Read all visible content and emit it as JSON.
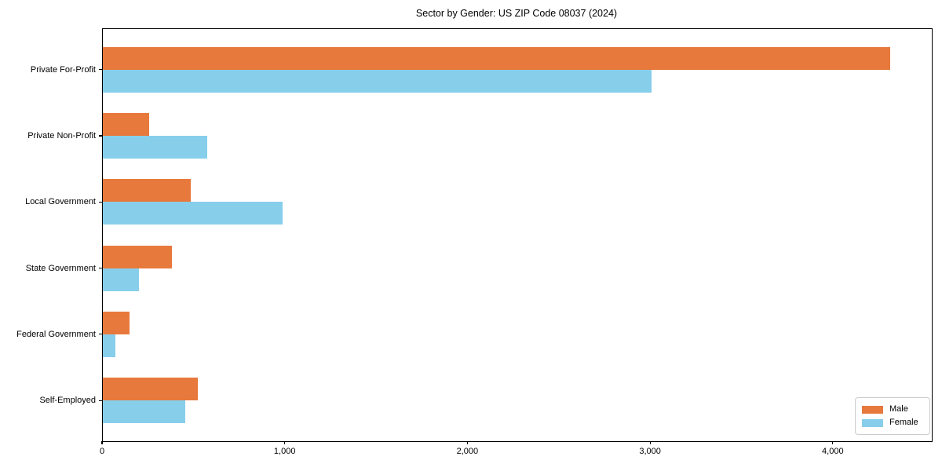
{
  "title": "Sector by Gender: US ZIP Code 08037 (2024)",
  "colors": {
    "male": "#E8793C",
    "female": "#87CEEB",
    "axis": "#000000",
    "legend_border": "#cccccc",
    "background": "#ffffff"
  },
  "chart_data": {
    "type": "bar",
    "orientation": "horizontal",
    "title": "Sector by Gender: US ZIP Code 08037 (2024)",
    "xlabel": "",
    "ylabel": "",
    "categories": [
      "Private For-Profit",
      "Private Non-Profit",
      "Local Government",
      "State Government",
      "Federal Government",
      "Self-Employed"
    ],
    "series": [
      {
        "name": "Male",
        "color": "#E8793C",
        "values": [
          4310,
          255,
          480,
          380,
          148,
          522
        ]
      },
      {
        "name": "Female",
        "color": "#87CEEB",
        "values": [
          3005,
          570,
          985,
          198,
          67,
          453
        ]
      }
    ],
    "xlim": [
      0,
      4538
    ],
    "xticks": [
      0,
      1000,
      2000,
      3000,
      4000
    ],
    "xtick_labels": [
      "0",
      "1,000",
      "2,000",
      "3,000",
      "4,000"
    ],
    "grid": false,
    "legend_position": "lower right"
  }
}
